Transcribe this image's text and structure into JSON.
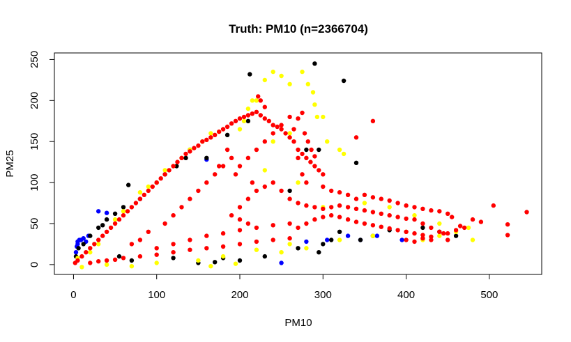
{
  "chart_data": {
    "type": "scatter",
    "title": "Truth: PM10 (n=2366704)",
    "xlabel": "PM10",
    "ylabel": "PM25",
    "xlim": [
      -23,
      563
    ],
    "ylim": [
      -12,
      258
    ],
    "x_ticks": [
      0,
      100,
      200,
      300,
      400,
      500
    ],
    "y_ticks": [
      0,
      50,
      100,
      150,
      200,
      250
    ],
    "x_tick_labels": [
      "0",
      "100",
      "200",
      "300",
      "400",
      "500"
    ],
    "y_tick_labels": [
      "0",
      "50",
      "100",
      "150",
      "200",
      "250"
    ],
    "grid": false,
    "legend": "none",
    "series": [
      {
        "color": "#0000ff",
        "points": [
          [
            3,
            15
          ],
          [
            4,
            22
          ],
          [
            5,
            28
          ],
          [
            5,
            25
          ],
          [
            7,
            30
          ],
          [
            9,
            30
          ],
          [
            12,
            32
          ],
          [
            15,
            28
          ],
          [
            18,
            35
          ],
          [
            30,
            65
          ],
          [
            40,
            63
          ],
          [
            160,
            128
          ],
          [
            250,
            2
          ],
          [
            280,
            28
          ],
          [
            305,
            30
          ],
          [
            330,
            35
          ],
          [
            345,
            30
          ],
          [
            365,
            35
          ],
          [
            395,
            30
          ]
        ]
      },
      {
        "color": "#000000",
        "points": [
          [
            3,
            10
          ],
          [
            6,
            20
          ],
          [
            12,
            25
          ],
          [
            20,
            35
          ],
          [
            30,
            45
          ],
          [
            35,
            48
          ],
          [
            40,
            55
          ],
          [
            50,
            62
          ],
          [
            60,
            70
          ],
          [
            66,
            97
          ],
          [
            80,
            80
          ],
          [
            100,
            100
          ],
          [
            110,
            110
          ],
          [
            124,
            120
          ],
          [
            135,
            130
          ],
          [
            140,
            140
          ],
          [
            160,
            130
          ],
          [
            185,
            158
          ],
          [
            200,
            5
          ],
          [
            212,
            232
          ],
          [
            210,
            175
          ],
          [
            290,
            245
          ],
          [
            325,
            224
          ],
          [
            280,
            140
          ],
          [
            295,
            140
          ],
          [
            340,
            124
          ],
          [
            345,
            30
          ],
          [
            260,
            90
          ],
          [
            300,
            25
          ],
          [
            320,
            40
          ],
          [
            360,
            35
          ],
          [
            380,
            42
          ],
          [
            420,
            45
          ],
          [
            440,
            40
          ],
          [
            460,
            35
          ],
          [
            55,
            10
          ],
          [
            70,
            5
          ],
          [
            120,
            8
          ],
          [
            150,
            2
          ],
          [
            170,
            3
          ],
          [
            180,
            8
          ],
          [
            270,
            20
          ],
          [
            295,
            15
          ],
          [
            310,
            30
          ],
          [
            230,
            10
          ]
        ]
      },
      {
        "color": "#ffff00",
        "points": [
          [
            5,
            8
          ],
          [
            20,
            15
          ],
          [
            30,
            25
          ],
          [
            50,
            55
          ],
          [
            60,
            65
          ],
          [
            80,
            88
          ],
          [
            90,
            95
          ],
          [
            100,
            100
          ],
          [
            110,
            115
          ],
          [
            120,
            120
          ],
          [
            130,
            130
          ],
          [
            140,
            140
          ],
          [
            155,
            150
          ],
          [
            165,
            160
          ],
          [
            175,
            162
          ],
          [
            200,
            165
          ],
          [
            205,
            175
          ],
          [
            215,
            200
          ],
          [
            230,
            225
          ],
          [
            240,
            235
          ],
          [
            250,
            230
          ],
          [
            260,
            220
          ],
          [
            275,
            235
          ],
          [
            282,
            220
          ],
          [
            288,
            210
          ],
          [
            290,
            195
          ],
          [
            293,
            180
          ],
          [
            300,
            180
          ],
          [
            325,
            135
          ],
          [
            260,
            160
          ],
          [
            240,
            150
          ],
          [
            220,
            200
          ],
          [
            210,
            190
          ],
          [
            305,
            150
          ],
          [
            320,
            140
          ],
          [
            230,
            115
          ],
          [
            270,
            100
          ],
          [
            300,
            70
          ],
          [
            350,
            75
          ],
          [
            380,
            70
          ],
          [
            410,
            60
          ],
          [
            440,
            50
          ],
          [
            460,
            40
          ],
          [
            475,
            45
          ],
          [
            480,
            30
          ],
          [
            100,
            2
          ],
          [
            150,
            5
          ],
          [
            180,
            10
          ],
          [
            220,
            18
          ],
          [
            260,
            25
          ],
          [
            280,
            20
          ],
          [
            320,
            30
          ],
          [
            360,
            35
          ],
          [
            400,
            40
          ],
          [
            420,
            30
          ],
          [
            440,
            35
          ],
          [
            70,
            -2
          ],
          [
            40,
            0
          ],
          [
            10,
            -3
          ],
          [
            165,
            -2
          ],
          [
            195,
            1
          ],
          [
            250,
            15
          ]
        ]
      },
      {
        "color": "#ff0000",
        "points": [
          [
            2,
            2
          ],
          [
            5,
            5
          ],
          [
            10,
            10
          ],
          [
            15,
            15
          ],
          [
            20,
            20
          ],
          [
            25,
            25
          ],
          [
            30,
            30
          ],
          [
            35,
            35
          ],
          [
            40,
            40
          ],
          [
            45,
            45
          ],
          [
            50,
            50
          ],
          [
            55,
            55
          ],
          [
            60,
            60
          ],
          [
            65,
            65
          ],
          [
            70,
            70
          ],
          [
            75,
            75
          ],
          [
            80,
            80
          ],
          [
            85,
            85
          ],
          [
            90,
            90
          ],
          [
            95,
            95
          ],
          [
            100,
            100
          ],
          [
            105,
            105
          ],
          [
            110,
            110
          ],
          [
            115,
            115
          ],
          [
            120,
            120
          ],
          [
            125,
            125
          ],
          [
            130,
            130
          ],
          [
            135,
            135
          ],
          [
            140,
            138
          ],
          [
            145,
            142
          ],
          [
            150,
            145
          ],
          [
            155,
            150
          ],
          [
            160,
            152
          ],
          [
            165,
            155
          ],
          [
            170,
            158
          ],
          [
            175,
            162
          ],
          [
            180,
            165
          ],
          [
            185,
            168
          ],
          [
            190,
            172
          ],
          [
            195,
            175
          ],
          [
            200,
            178
          ],
          [
            205,
            180
          ],
          [
            210,
            182
          ],
          [
            215,
            184
          ],
          [
            220,
            186
          ],
          [
            225,
            182
          ],
          [
            230,
            178
          ],
          [
            235,
            175
          ],
          [
            240,
            170
          ],
          [
            245,
            168
          ],
          [
            250,
            165
          ],
          [
            255,
            160
          ],
          [
            260,
            155
          ],
          [
            265,
            150
          ],
          [
            270,
            140
          ],
          [
            275,
            135
          ],
          [
            280,
            130
          ],
          [
            285,
            125
          ],
          [
            290,
            120
          ],
          [
            295,
            115
          ],
          [
            300,
            110
          ],
          [
            240,
            100
          ],
          [
            250,
            90
          ],
          [
            260,
            80
          ],
          [
            270,
            75
          ],
          [
            280,
            72
          ],
          [
            290,
            70
          ],
          [
            300,
            68
          ],
          [
            310,
            70
          ],
          [
            320,
            72
          ],
          [
            330,
            70
          ],
          [
            340,
            68
          ],
          [
            350,
            66
          ],
          [
            360,
            64
          ],
          [
            370,
            62
          ],
          [
            380,
            60
          ],
          [
            390,
            58
          ],
          [
            400,
            56
          ],
          [
            410,
            55
          ],
          [
            420,
            50
          ],
          [
            430,
            45
          ],
          [
            440,
            40
          ],
          [
            450,
            38
          ],
          [
            460,
            42
          ],
          [
            465,
            47
          ],
          [
            470,
            45
          ],
          [
            480,
            55
          ],
          [
            490,
            52
          ],
          [
            505,
            72
          ],
          [
            522,
            49
          ],
          [
            522,
            36
          ],
          [
            545,
            64
          ],
          [
            270,
            45
          ],
          [
            280,
            50
          ],
          [
            290,
            55
          ],
          [
            300,
            58
          ],
          [
            310,
            60
          ],
          [
            320,
            58
          ],
          [
            330,
            55
          ],
          [
            340,
            52
          ],
          [
            350,
            50
          ],
          [
            360,
            48
          ],
          [
            370,
            46
          ],
          [
            380,
            44
          ],
          [
            390,
            42
          ],
          [
            400,
            40
          ],
          [
            410,
            38
          ],
          [
            420,
            36
          ],
          [
            430,
            34
          ],
          [
            100,
            20
          ],
          [
            120,
            25
          ],
          [
            140,
            30
          ],
          [
            160,
            35
          ],
          [
            180,
            38
          ],
          [
            200,
            42
          ],
          [
            220,
            45
          ],
          [
            240,
            48
          ],
          [
            260,
            50
          ],
          [
            60,
            8
          ],
          [
            80,
            10
          ],
          [
            100,
            12
          ],
          [
            120,
            15
          ],
          [
            140,
            18
          ],
          [
            160,
            20
          ],
          [
            180,
            22
          ],
          [
            200,
            25
          ],
          [
            220,
            28
          ],
          [
            240,
            30
          ],
          [
            260,
            32
          ],
          [
            20,
            2
          ],
          [
            30,
            4
          ],
          [
            40,
            5
          ],
          [
            50,
            6
          ],
          [
            200,
            120
          ],
          [
            210,
            130
          ],
          [
            220,
            140
          ],
          [
            230,
            150
          ],
          [
            240,
            160
          ],
          [
            250,
            170
          ],
          [
            260,
            180
          ],
          [
            270,
            178
          ],
          [
            275,
            185
          ],
          [
            265,
            165
          ],
          [
            230,
            192
          ],
          [
            225,
            200
          ],
          [
            222,
            205
          ],
          [
            278,
            160
          ],
          [
            282,
            150
          ],
          [
            286,
            140
          ],
          [
            290,
            132
          ],
          [
            360,
            175
          ],
          [
            340,
            155
          ],
          [
            270,
            130
          ],
          [
            275,
            110
          ],
          [
            280,
            100
          ],
          [
            300,
            95
          ],
          [
            310,
            90
          ],
          [
            320,
            88
          ],
          [
            330,
            85
          ],
          [
            340,
            80
          ],
          [
            350,
            85
          ],
          [
            360,
            82
          ],
          [
            370,
            80
          ],
          [
            380,
            78
          ],
          [
            390,
            75
          ],
          [
            400,
            72
          ],
          [
            410,
            70
          ],
          [
            420,
            68
          ],
          [
            430,
            66
          ],
          [
            440,
            65
          ],
          [
            450,
            62
          ],
          [
            455,
            58
          ],
          [
            400,
            30
          ],
          [
            410,
            28
          ],
          [
            420,
            32
          ],
          [
            430,
            30
          ],
          [
            445,
            38
          ],
          [
            450,
            30
          ],
          [
            200,
            70
          ],
          [
            210,
            80
          ],
          [
            220,
            90
          ],
          [
            230,
            95
          ],
          [
            150,
            90
          ],
          [
            160,
            100
          ],
          [
            170,
            110
          ],
          [
            180,
            120
          ],
          [
            190,
            130
          ],
          [
            130,
            70
          ],
          [
            140,
            80
          ],
          [
            110,
            50
          ],
          [
            120,
            60
          ],
          [
            90,
            40
          ],
          [
            80,
            30
          ],
          [
            70,
            25
          ],
          [
            190,
            60
          ],
          [
            200,
            55
          ],
          [
            210,
            50
          ],
          [
            215,
            100
          ],
          [
            195,
            110
          ],
          [
            185,
            140
          ],
          [
            175,
            120
          ]
        ]
      }
    ]
  }
}
